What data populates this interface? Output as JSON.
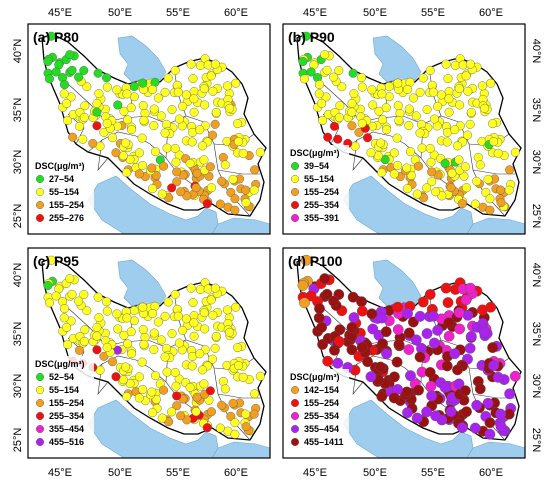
{
  "lon_ticks": [
    "45°E",
    "50°E",
    "55°E",
    "60°E"
  ],
  "lat_ticks": [
    "40°N",
    "35°N",
    "30°N",
    "25°N"
  ],
  "legend_title": "DSC(μg/m³)",
  "colors": {
    "sea": "#9fcdee",
    "land": "#ffffff",
    "border": "#000000",
    "province": "#333333"
  },
  "panels": [
    {
      "title": "(a) P80",
      "legend": [
        {
          "label": "27–54",
          "color": "#22dd22"
        },
        {
          "label": "55–154",
          "color": "#ffff22"
        },
        {
          "label": "155–254",
          "color": "#f0a020"
        },
        {
          "label": "255–276",
          "color": "#ee1111"
        }
      ]
    },
    {
      "title": "(b) P90",
      "legend": [
        {
          "label": "39–54",
          "color": "#22dd22"
        },
        {
          "label": "55–154",
          "color": "#ffff22"
        },
        {
          "label": "155–254",
          "color": "#f0a020"
        },
        {
          "label": "255–354",
          "color": "#ee1111"
        },
        {
          "label": "355–391",
          "color": "#ee22cc"
        }
      ]
    },
    {
      "title": "(c) P95",
      "legend": [
        {
          "label": "52–54",
          "color": "#22dd22"
        },
        {
          "label": "55–154",
          "color": "#ffff22"
        },
        {
          "label": "155–254",
          "color": "#f0a020"
        },
        {
          "label": "255–354",
          "color": "#ee1111"
        },
        {
          "label": "355–454",
          "color": "#ee22cc"
        },
        {
          "label": "455–516",
          "color": "#aa22ee"
        }
      ]
    },
    {
      "title": "(d) P100",
      "legend": [
        {
          "label": "142–154",
          "color": "#f0a020"
        },
        {
          "label": "155–254",
          "color": "#ee1111"
        },
        {
          "label": "255–354",
          "color": "#ee22cc"
        },
        {
          "label": "355–454",
          "color": "#aa22ee"
        },
        {
          "label": "455–1411",
          "color": "#991111"
        }
      ]
    }
  ]
}
